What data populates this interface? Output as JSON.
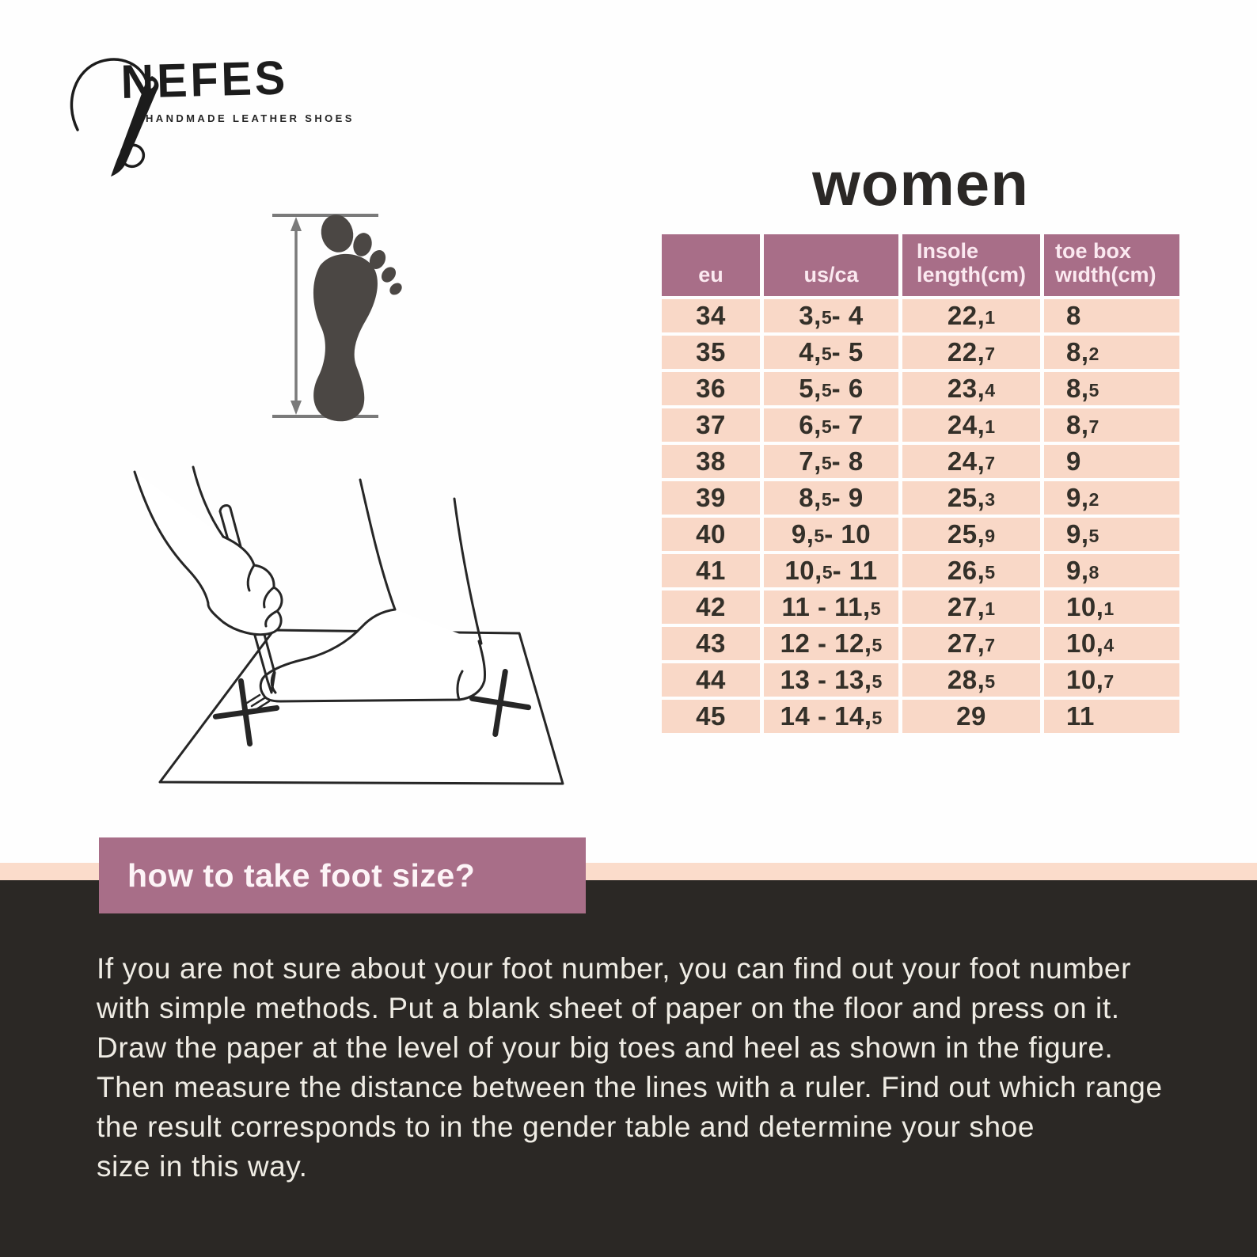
{
  "brand": {
    "name": "NEFES",
    "tagline": "HANDMADE LEATHER SHOES"
  },
  "size_chart": {
    "title": "women",
    "columns": [
      "eu",
      "us/ca",
      "Insole\nlength(cm)",
      "toe box\nwıdth(cm)"
    ],
    "rows": [
      [
        "34",
        "3,5 - 4",
        "22,1",
        "8"
      ],
      [
        "35",
        "4,5 - 5",
        "22,7",
        "8,2"
      ],
      [
        "36",
        "5,5 - 6",
        "23,4",
        "8,5"
      ],
      [
        "37",
        "6,5 - 7",
        "24,1",
        "8,7"
      ],
      [
        "38",
        "7,5 - 8",
        "24,7",
        "9"
      ],
      [
        "39",
        "8,5 - 9",
        "25,3",
        "9,2"
      ],
      [
        "40",
        "9,5 - 10",
        "25,9",
        "9,5"
      ],
      [
        "41",
        "10,5 - 11",
        "26,5",
        "9,8"
      ],
      [
        "42",
        "11 - 11,5",
        "27,1",
        "10,1"
      ],
      [
        "43",
        "12 - 12,5",
        "27,7",
        "10,4"
      ],
      [
        "44",
        "13 - 13,5",
        "28,5",
        "10,7"
      ],
      [
        "45",
        "14 - 14,5",
        "29",
        "11"
      ]
    ]
  },
  "how_to": {
    "heading": "how to take foot size?",
    "body": "If you are not sure about your foot number, you can find out your foot number\nwith simple methods. Put a blank sheet of paper on the floor and press on it.\nDraw the paper at the level of your big toes and heel as shown in the figure.\nThen measure the distance between the lines with a ruler. Find out which range\nthe result corresponds to in the gender table and determine your shoe\nsize in this way."
  },
  "colors": {
    "header_mauve": "#a86e88",
    "row_peach": "#f9d8c7",
    "stripe_peach": "#fbdccb",
    "footer_dark": "#2b2825",
    "footer_text": "#efece4",
    "ink_dark": "#2b2826",
    "footprint_gray": "#4b4744"
  }
}
